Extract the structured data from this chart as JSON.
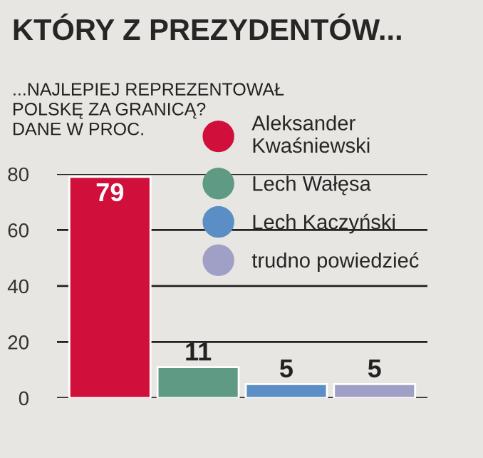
{
  "chart_data": {
    "type": "bar",
    "title": "KTÓRY Z PREZYDENTÓW...",
    "subtitle": "...NAJLEPIEJ REPREZENTOWAŁ\nPOLSKĘ ZA GRANICĄ?\nDANE W PROC.",
    "categories": [
      null,
      null,
      null,
      null
    ],
    "series": [
      {
        "name": "Aleksander\nKwaśniewski",
        "color": "#d0103a",
        "values": [
          79,
          null,
          null,
          null
        ]
      },
      {
        "name": "Lech Wałęsa",
        "color": "#5e9a84",
        "values": [
          null,
          11,
          null,
          null
        ]
      },
      {
        "name": "Lech Kaczyński",
        "color": "#5b8ec4",
        "values": [
          null,
          null,
          5,
          null
        ]
      },
      {
        "name": "trudno powiedzieć",
        "color": "#a09fc6",
        "values": [
          null,
          null,
          null,
          5
        ]
      }
    ],
    "ylim": [
      0,
      80
    ],
    "yticks": [
      0,
      20,
      40,
      60,
      80
    ],
    "grid": "y",
    "legend": "top right",
    "data_labels": true,
    "marker": "circle"
  }
}
